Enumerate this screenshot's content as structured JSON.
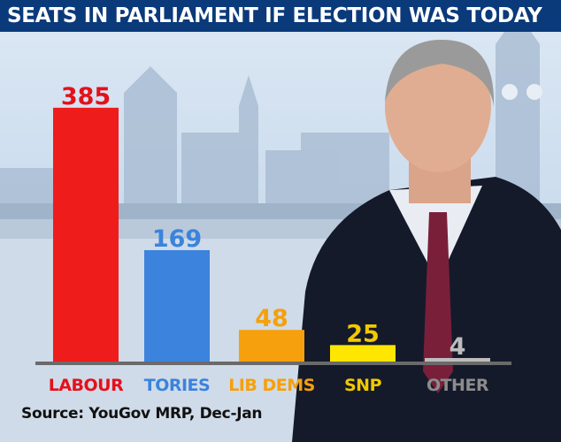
{
  "header": {
    "title": "SEATS IN PARLIAMENT IF ELECTION WAS TODAY"
  },
  "source": "Source: YouGov MRP, Dec-Jan",
  "chart_data": {
    "type": "bar",
    "title": "SEATS IN PARLIAMENT IF ELECTION WAS TODAY",
    "categories": [
      "LABOUR",
      "TORIES",
      "LIB DEMS",
      "SNP",
      "OTHER"
    ],
    "values": [
      385,
      169,
      48,
      25,
      4
    ],
    "value_labels": [
      "385",
      "169",
      "48",
      "25",
      "4"
    ],
    "colors": [
      "#ef1c1c",
      "#3b83dc",
      "#f5a00c",
      "#ffe600",
      "#bdbdbd"
    ],
    "label_colors": [
      "#e5101a",
      "#3b83dc",
      "#f5a00c",
      "#f2c800",
      "#8c8c8c"
    ],
    "value_colors": [
      "#e5101a",
      "#3b83dc",
      "#f5a00c",
      "#f2c800",
      "#bdbdbd"
    ],
    "ylim": [
      0,
      400
    ],
    "grid": false,
    "legend": "none",
    "source": "Source: YouGov MRP, Dec-Jan"
  }
}
